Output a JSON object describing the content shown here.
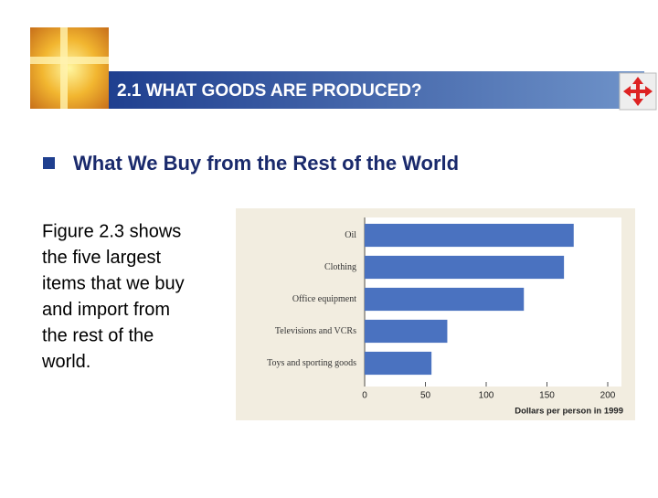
{
  "header": {
    "title": "2.1 WHAT GOODS ARE PRODUCED?"
  },
  "bullet": "What We Buy from the Rest of the World",
  "body": {
    "lines": [
      "Figure 2.3 shows",
      "the five largest",
      "items that we buy",
      "and import from",
      "the rest of the",
      "world."
    ]
  },
  "chart_data": {
    "type": "bar",
    "orientation": "horizontal",
    "categories": [
      "Oil",
      "Clothing",
      "Office equipment",
      "Televisions and VCRs",
      "Toys and sporting goods"
    ],
    "values": [
      172,
      164,
      131,
      68,
      55
    ],
    "color": "#4a72c0",
    "xlabel": "Dollars per person in 1999",
    "xlim": [
      0,
      200
    ],
    "xticks": [
      0,
      50,
      100,
      150,
      200
    ],
    "grid": false
  }
}
